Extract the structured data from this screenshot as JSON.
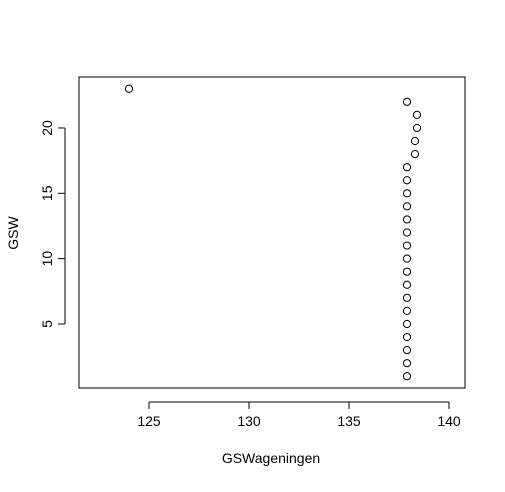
{
  "chart_data": {
    "type": "scatter",
    "xlabel": "GSWageningen",
    "ylabel": "GSW",
    "xlim": [
      121.5,
      140.8
    ],
    "ylim": [
      0.1,
      23.9
    ],
    "x_ticks": [
      125,
      130,
      135,
      140
    ],
    "y_ticks": [
      5,
      10,
      15,
      20
    ],
    "grid": false,
    "point_style": "open-circle",
    "points": [
      {
        "x": 124.0,
        "y": 23
      },
      {
        "x": 137.9,
        "y": 22
      },
      {
        "x": 138.4,
        "y": 21
      },
      {
        "x": 138.4,
        "y": 20
      },
      {
        "x": 138.3,
        "y": 19
      },
      {
        "x": 138.3,
        "y": 18
      },
      {
        "x": 137.9,
        "y": 17
      },
      {
        "x": 137.9,
        "y": 16
      },
      {
        "x": 137.9,
        "y": 15
      },
      {
        "x": 137.9,
        "y": 14
      },
      {
        "x": 137.9,
        "y": 13
      },
      {
        "x": 137.9,
        "y": 12
      },
      {
        "x": 137.9,
        "y": 11
      },
      {
        "x": 137.9,
        "y": 10
      },
      {
        "x": 137.9,
        "y": 9
      },
      {
        "x": 137.9,
        "y": 8
      },
      {
        "x": 137.9,
        "y": 7
      },
      {
        "x": 137.9,
        "y": 6
      },
      {
        "x": 137.9,
        "y": 5
      },
      {
        "x": 137.9,
        "y": 4
      },
      {
        "x": 137.9,
        "y": 3
      },
      {
        "x": 137.9,
        "y": 2
      },
      {
        "x": 137.9,
        "y": 1
      }
    ]
  }
}
